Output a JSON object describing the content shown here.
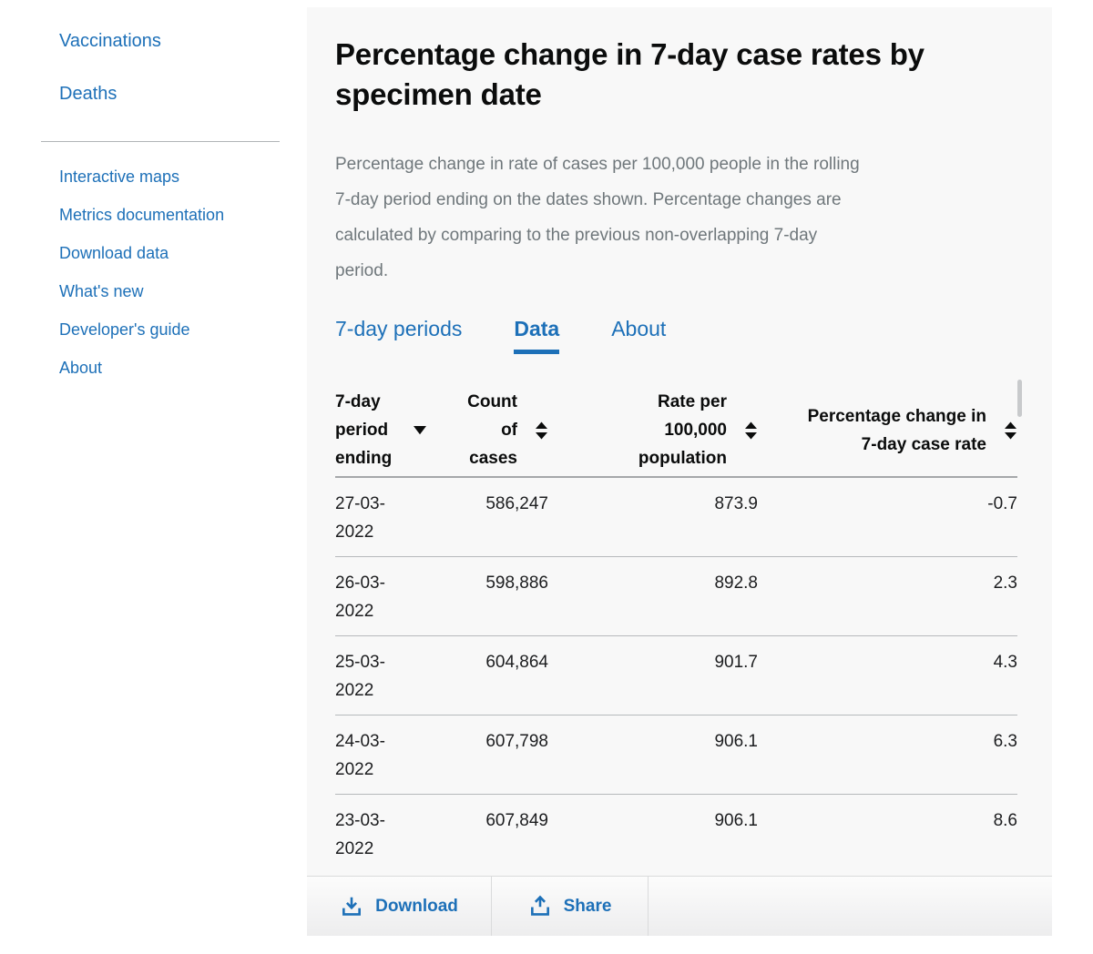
{
  "sidebar": {
    "primary_items": [
      {
        "label": "Vaccinations"
      },
      {
        "label": "Deaths"
      }
    ],
    "secondary_items": [
      {
        "label": "Interactive maps"
      },
      {
        "label": "Metrics documentation"
      },
      {
        "label": "Download data"
      },
      {
        "label": "What's new"
      },
      {
        "label": "Developer's guide"
      },
      {
        "label": "About"
      }
    ]
  },
  "main": {
    "title": "Percentage change in 7-day case rates by specimen date",
    "description": "Percentage change in rate of cases per 100,000 people in the rolling 7-day period ending on the dates shown. Percentage changes are calculated by comparing to the previous non-overlapping 7-day period.",
    "tabs": [
      {
        "label": "7-day periods",
        "active": false
      },
      {
        "label": "Data",
        "active": true
      },
      {
        "label": "About",
        "active": false
      }
    ],
    "table": {
      "columns": [
        {
          "id": "period",
          "label": "7-day period ending",
          "sort": "desc",
          "align": "left"
        },
        {
          "id": "cases",
          "label": "Count of cases",
          "sort": "both",
          "align": "right"
        },
        {
          "id": "rate",
          "label": "Rate per 100,000 population",
          "sort": "both",
          "align": "right"
        },
        {
          "id": "change",
          "label": "Percentage change in 7-day case rate",
          "sort": "both",
          "align": "right"
        }
      ],
      "rows": [
        [
          "27-03-2022",
          "586,247",
          "873.9",
          "-0.7"
        ],
        [
          "26-03-2022",
          "598,886",
          "892.8",
          "2.3"
        ],
        [
          "25-03-2022",
          "604,864",
          "901.7",
          "4.3"
        ],
        [
          "24-03-2022",
          "607,798",
          "906.1",
          "6.3"
        ],
        [
          "23-03-2022",
          "607,849",
          "906.1",
          "8.6"
        ]
      ]
    },
    "footer": {
      "download_label": "Download",
      "share_label": "Share"
    }
  },
  "colors": {
    "accent": "#1d70b8",
    "text": "#0b0c0c",
    "muted": "#6f777b",
    "panel_bg": "#f8f8f8",
    "border": "#b1b4b6"
  }
}
